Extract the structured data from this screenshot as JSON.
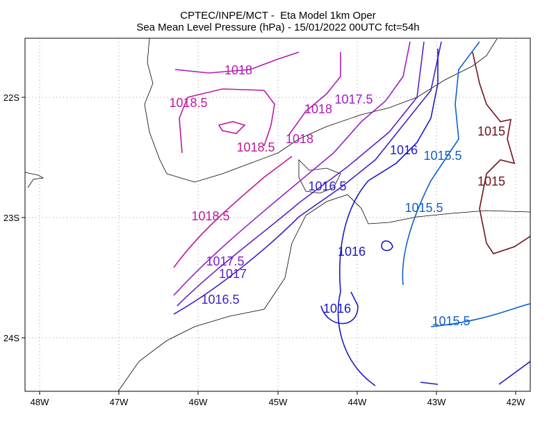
{
  "header": {
    "title": "CPTEC/INPE/MCT -  Eta Model 1km Oper",
    "subtitle": "Sea Mean Level Pressure (hPa) - 15/01/2022 00UTC fct=54h"
  },
  "axes": {
    "longitudes": [
      "48W",
      "47W",
      "46W",
      "45W",
      "44W",
      "43W",
      "42W"
    ],
    "latitudes": [
      "22S",
      "23S",
      "24S"
    ]
  },
  "contour_labels": [
    "1018",
    "1018.5",
    "1018",
    "1017.5",
    "1018.5",
    "1018",
    "1016",
    "1015.5",
    "1015",
    "1015",
    "1016.5",
    "1015.5",
    "1018.5",
    "1017.5",
    "1017",
    "1016.5",
    "1016",
    "1016",
    "1015.5"
  ]
}
